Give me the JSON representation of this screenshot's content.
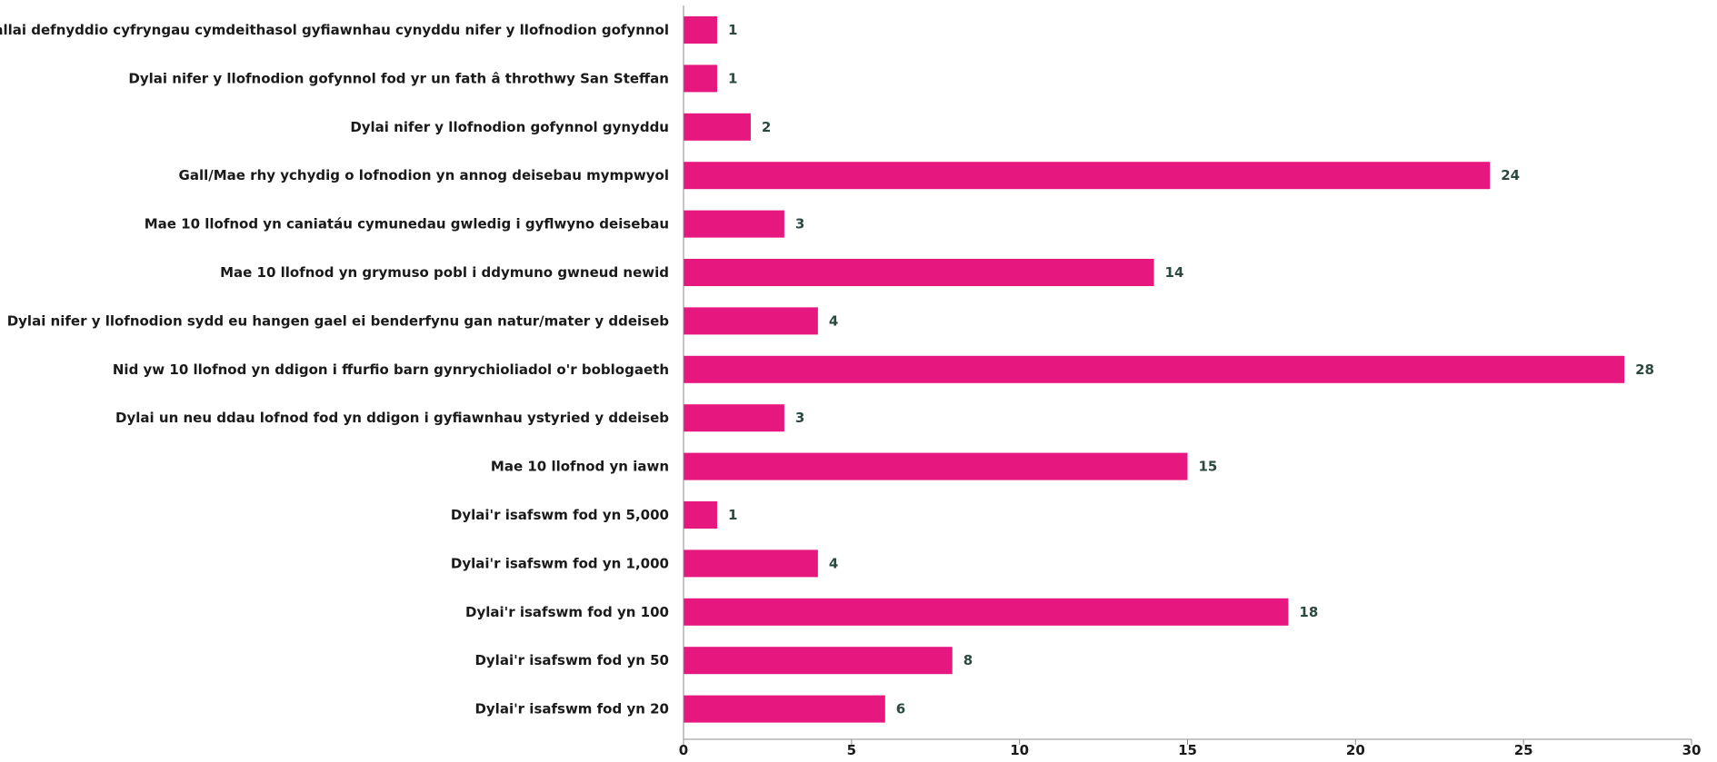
{
  "chart_data": {
    "type": "bar",
    "orientation": "horizontal",
    "categories": [
      "Gallai defnyddio cyfryngau cymdeithasol gyfiawnhau cynyddu nifer y llofnodion gofynnol",
      "Dylai nifer y llofnodion gofynnol fod yr un fath â throthwy San Steffan",
      "Dylai nifer y llofnodion gofynnol gynyddu",
      "Gall/Mae rhy ychydig o lofnodion yn annog deisebau mympwyol",
      "Mae 10 llofnod yn caniatáu cymunedau gwledig i gyflwyno deisebau",
      "Mae 10 llofnod yn grymuso pobl i ddymuno gwneud newid",
      "Dylai nifer y llofnodion sydd eu hangen gael ei benderfynu gan natur/mater y ddeiseb",
      "Nid yw 10 llofnod yn ddigon i ffurfio barn gynrychioliadol o'r boblogaeth",
      "Dylai un neu ddau lofnod fod yn ddigon i gyfiawnhau ystyried y ddeiseb",
      "Mae 10 llofnod yn iawn",
      "Dylai'r isafswm fod yn 5,000",
      "Dylai'r isafswm fod yn 1,000",
      "Dylai'r isafswm fod yn 100",
      "Dylai'r isafswm fod yn 50",
      "Dylai'r isafswm fod yn 20"
    ],
    "values": [
      1,
      1,
      2,
      24,
      3,
      14,
      4,
      28,
      3,
      15,
      1,
      4,
      18,
      8,
      6
    ],
    "xlim": [
      0,
      30
    ],
    "xticks": [
      "0",
      "5",
      "10",
      "15",
      "20",
      "25",
      "30"
    ],
    "grid": false,
    "bar_color": "#e6177f",
    "value_label_color": "#2b4a3e"
  }
}
